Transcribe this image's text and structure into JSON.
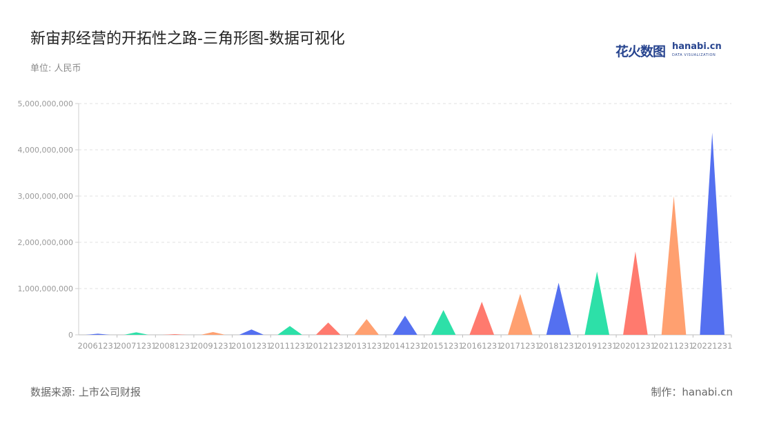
{
  "title": "新宙邦经营的开拓性之路-三角形图-数据可视化",
  "unit_label": "单位: 人民币",
  "logo": {
    "text_cn": "花火数图",
    "text_en": "hanabi.cn",
    "subtext": "DATA VISUALIZATION"
  },
  "source": "数据来源: 上市公司财报",
  "maker": "制作：hanabi.cn",
  "colors": [
    "#5470f0",
    "#2de0a8",
    "#ff7a6e",
    "#ffa070"
  ],
  "chart_data": {
    "type": "bar",
    "bar_shape": "triangle",
    "categories": [
      "20061231",
      "20071231",
      "20081231",
      "20091231",
      "20101231",
      "20111231",
      "20121231",
      "20131231",
      "20141231",
      "20151231",
      "20161231",
      "20171231",
      "20181231",
      "20191231",
      "20201231",
      "20211231",
      "20221231"
    ],
    "values": [
      25000000,
      55000000,
      15000000,
      60000000,
      115000000,
      190000000,
      265000000,
      340000000,
      415000000,
      535000000,
      715000000,
      885000000,
      1125000000,
      1370000000,
      1800000000,
      3000000000,
      4370000000
    ],
    "y_ticks": [
      "0",
      "1,000,000,000",
      "2,000,000,000",
      "3,000,000,000",
      "4,000,000,000",
      "5,000,000,000"
    ],
    "ylim": [
      0,
      5000000000
    ],
    "grid": true,
    "legend": "none"
  }
}
